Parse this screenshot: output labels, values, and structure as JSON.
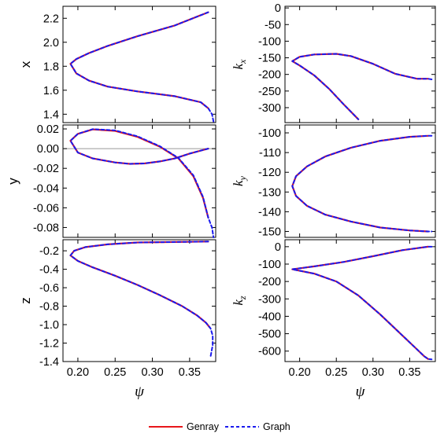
{
  "legend": [
    {
      "label": "Genray",
      "color": "#e8161a",
      "dash": false
    },
    {
      "label": "Graph",
      "color": "#1a1aee",
      "dash": true
    }
  ],
  "chart_data": [
    {
      "id": "x",
      "type": "line",
      "ylabel": "x",
      "xlabel": "",
      "xlim": [
        0.18,
        0.385
      ],
      "ylim": [
        1.33,
        2.3
      ],
      "xticks": [
        0.2,
        0.25,
        0.3,
        0.35
      ],
      "yticks": [
        1.4,
        1.6,
        1.8,
        2.0,
        2.2
      ],
      "yticklabels": [
        "1.4",
        "1.6",
        "1.8",
        "2.0",
        "2.2"
      ],
      "series": [
        {
          "name": "Genray",
          "x": [
            0.375,
            0.33,
            0.28,
            0.24,
            0.215,
            0.198,
            0.19,
            0.198,
            0.215,
            0.24,
            0.28,
            0.33,
            0.365,
            0.375
          ],
          "y": [
            2.25,
            2.14,
            2.05,
            1.97,
            1.91,
            1.86,
            1.82,
            1.74,
            1.68,
            1.63,
            1.59,
            1.55,
            1.5,
            1.45
          ]
        },
        {
          "name": "Graph",
          "x": [
            0.375,
            0.33,
            0.28,
            0.24,
            0.215,
            0.198,
            0.19,
            0.198,
            0.215,
            0.24,
            0.28,
            0.33,
            0.365,
            0.375,
            0.38,
            0.382
          ],
          "y": [
            2.25,
            2.14,
            2.05,
            1.97,
            1.91,
            1.86,
            1.82,
            1.74,
            1.68,
            1.63,
            1.59,
            1.55,
            1.5,
            1.45,
            1.4,
            1.34
          ]
        }
      ]
    },
    {
      "id": "kx",
      "type": "line",
      "ylabel": "k_x",
      "xlabel": "",
      "xlim": [
        0.18,
        0.385
      ],
      "ylim": [
        -345,
        5
      ],
      "xticks": [
        0.2,
        0.25,
        0.3,
        0.35
      ],
      "yticks": [
        0,
        -50,
        -100,
        -150,
        -200,
        -250,
        -300
      ],
      "yticklabels": [
        "0",
        "-50",
        "-100",
        "-150",
        "-200",
        "-250",
        "-300"
      ],
      "series": [
        {
          "name": "Genray",
          "x": [
            0.375,
            0.36,
            0.33,
            0.3,
            0.27,
            0.25,
            0.22,
            0.2,
            0.19,
            0.2,
            0.22,
            0.24,
            0.26,
            0.28
          ],
          "y": [
            -213,
            -213,
            -198,
            -168,
            -145,
            -138,
            -140,
            -147,
            -160,
            -173,
            -203,
            -243,
            -290,
            -335
          ]
        },
        {
          "name": "Graph",
          "x": [
            0.38,
            0.375,
            0.36,
            0.33,
            0.3,
            0.27,
            0.25,
            0.22,
            0.2,
            0.19,
            0.2,
            0.22,
            0.24,
            0.26,
            0.28
          ],
          "y": [
            -215,
            -213,
            -213,
            -198,
            -168,
            -145,
            -138,
            -140,
            -147,
            -160,
            -173,
            -203,
            -243,
            -290,
            -335
          ]
        }
      ]
    },
    {
      "id": "y",
      "type": "line",
      "ylabel": "y",
      "xlabel": "",
      "xlim": [
        0.18,
        0.385
      ],
      "ylim": [
        -0.09,
        0.024
      ],
      "xticks": [
        0.2,
        0.25,
        0.3,
        0.35
      ],
      "yticks": [
        0.02,
        0.0,
        -0.02,
        -0.04,
        -0.06,
        -0.08
      ],
      "yticklabels": [
        "0.02",
        "0.00",
        "-0.02",
        "-0.04",
        "-0.06",
        "-0.08"
      ],
      "zero_line": true,
      "series": [
        {
          "name": "Genray",
          "x": [
            0.375,
            0.35,
            0.33,
            0.31,
            0.29,
            0.27,
            0.25,
            0.22,
            0.2,
            0.19,
            0.2,
            0.22,
            0.25,
            0.28,
            0.31,
            0.335,
            0.355,
            0.368,
            0.375
          ],
          "y": [
            0.0,
            -0.005,
            -0.01,
            -0.013,
            -0.015,
            -0.0155,
            -0.014,
            -0.01,
            -0.004,
            0.008,
            0.015,
            0.0195,
            0.018,
            0.012,
            0.002,
            -0.01,
            -0.028,
            -0.05,
            -0.07
          ]
        },
        {
          "name": "Graph",
          "x": [
            0.375,
            0.35,
            0.33,
            0.31,
            0.29,
            0.27,
            0.25,
            0.22,
            0.2,
            0.19,
            0.2,
            0.22,
            0.25,
            0.28,
            0.31,
            0.335,
            0.355,
            0.368,
            0.375,
            0.38,
            0.382
          ],
          "y": [
            0.0,
            -0.005,
            -0.01,
            -0.013,
            -0.015,
            -0.0155,
            -0.014,
            -0.01,
            -0.004,
            0.008,
            0.015,
            0.0198,
            0.0185,
            0.0125,
            0.0025,
            -0.0095,
            -0.027,
            -0.049,
            -0.07,
            -0.08,
            -0.09
          ]
        }
      ]
    },
    {
      "id": "ky",
      "type": "line",
      "ylabel": "k_y",
      "xlabel": "",
      "xlim": [
        0.18,
        0.385
      ],
      "ylim": [
        -153,
        -96
      ],
      "xticks": [
        0.2,
        0.25,
        0.3,
        0.35
      ],
      "yticks": [
        -100,
        -110,
        -120,
        -130,
        -140,
        -150
      ],
      "yticklabels": [
        "-100",
        "-110",
        "-120",
        "-130",
        "-140",
        "-150"
      ],
      "series": [
        {
          "name": "Genray",
          "x": [
            0.375,
            0.35,
            0.31,
            0.27,
            0.235,
            0.21,
            0.195,
            0.19,
            0.195,
            0.21,
            0.235,
            0.27,
            0.31,
            0.35,
            0.375
          ],
          "y": [
            -101.5,
            -102,
            -104,
            -107.5,
            -112,
            -117,
            -122,
            -127,
            -132,
            -137,
            -141.5,
            -145,
            -148,
            -149.5,
            -150
          ]
        },
        {
          "name": "Graph",
          "x": [
            0.38,
            0.375,
            0.35,
            0.31,
            0.27,
            0.235,
            0.21,
            0.195,
            0.19,
            0.195,
            0.21,
            0.235,
            0.27,
            0.31,
            0.35,
            0.375,
            0.38
          ],
          "y": [
            -101.5,
            -101.5,
            -102,
            -104,
            -107.5,
            -112,
            -117,
            -122,
            -127,
            -132,
            -137,
            -141.5,
            -145,
            -148,
            -149.5,
            -150,
            -150
          ]
        }
      ]
    },
    {
      "id": "z",
      "type": "line",
      "ylabel": "z",
      "xlabel": "ψ",
      "xlim": [
        0.18,
        0.385
      ],
      "ylim": [
        -1.4,
        -0.08
      ],
      "xticks": [
        0.2,
        0.25,
        0.3,
        0.35
      ],
      "xticklabels": [
        "0.20",
        "0.25",
        "0.30",
        "0.35"
      ],
      "yticks": [
        -0.2,
        -0.4,
        -0.6,
        -0.8,
        -1.0,
        -1.2,
        -1.4
      ],
      "yticklabels": [
        "-0.2",
        "-0.4",
        "-0.6",
        "-0.8",
        "-1.0",
        "-1.2",
        "-1.4"
      ],
      "series": [
        {
          "name": "Genray",
          "x": [
            0.375,
            0.33,
            0.28,
            0.24,
            0.21,
            0.195,
            0.19,
            0.2,
            0.22,
            0.25,
            0.28,
            0.31,
            0.34,
            0.36,
            0.372,
            0.377
          ],
          "y": [
            -0.1,
            -0.105,
            -0.11,
            -0.13,
            -0.16,
            -0.2,
            -0.25,
            -0.31,
            -0.38,
            -0.47,
            -0.57,
            -0.68,
            -0.8,
            -0.9,
            -0.98,
            -1.03
          ]
        },
        {
          "name": "Graph",
          "x": [
            0.375,
            0.33,
            0.28,
            0.24,
            0.21,
            0.195,
            0.19,
            0.2,
            0.22,
            0.25,
            0.28,
            0.31,
            0.34,
            0.36,
            0.372,
            0.378,
            0.381,
            0.381,
            0.378
          ],
          "y": [
            -0.1,
            -0.105,
            -0.11,
            -0.13,
            -0.16,
            -0.2,
            -0.25,
            -0.31,
            -0.38,
            -0.47,
            -0.57,
            -0.68,
            -0.8,
            -0.9,
            -0.98,
            -1.04,
            -1.12,
            -1.22,
            -1.35
          ]
        }
      ]
    },
    {
      "id": "kz",
      "type": "line",
      "ylabel": "k_z",
      "xlabel": "ψ",
      "xlim": [
        0.18,
        0.385
      ],
      "ylim": [
        -660,
        40
      ],
      "xticks": [
        0.2,
        0.25,
        0.3,
        0.35
      ],
      "xticklabels": [
        "0.20",
        "0.25",
        "0.30",
        "0.35"
      ],
      "yticks": [
        0,
        -100,
        -200,
        -300,
        -400,
        -500,
        -600
      ],
      "yticklabels": [
        "0",
        "-100",
        "-200",
        "-300",
        "-400",
        "-500",
        "-600"
      ],
      "series": [
        {
          "name": "Genray",
          "x": [
            0.375,
            0.34,
            0.3,
            0.26,
            0.22,
            0.19,
            0.22,
            0.25,
            0.28,
            0.31,
            0.34,
            0.36,
            0.37,
            0.375
          ],
          "y": [
            0,
            -20,
            -55,
            -88,
            -113,
            -130,
            -155,
            -200,
            -280,
            -390,
            -510,
            -590,
            -630,
            -645
          ]
        },
        {
          "name": "Graph",
          "x": [
            0.38,
            0.375,
            0.34,
            0.3,
            0.26,
            0.22,
            0.19,
            0.22,
            0.25,
            0.28,
            0.31,
            0.34,
            0.36,
            0.37,
            0.375,
            0.38
          ],
          "y": [
            0,
            0,
            -20,
            -55,
            -88,
            -113,
            -130,
            -155,
            -200,
            -280,
            -390,
            -510,
            -590,
            -630,
            -645,
            -648
          ]
        }
      ]
    }
  ]
}
